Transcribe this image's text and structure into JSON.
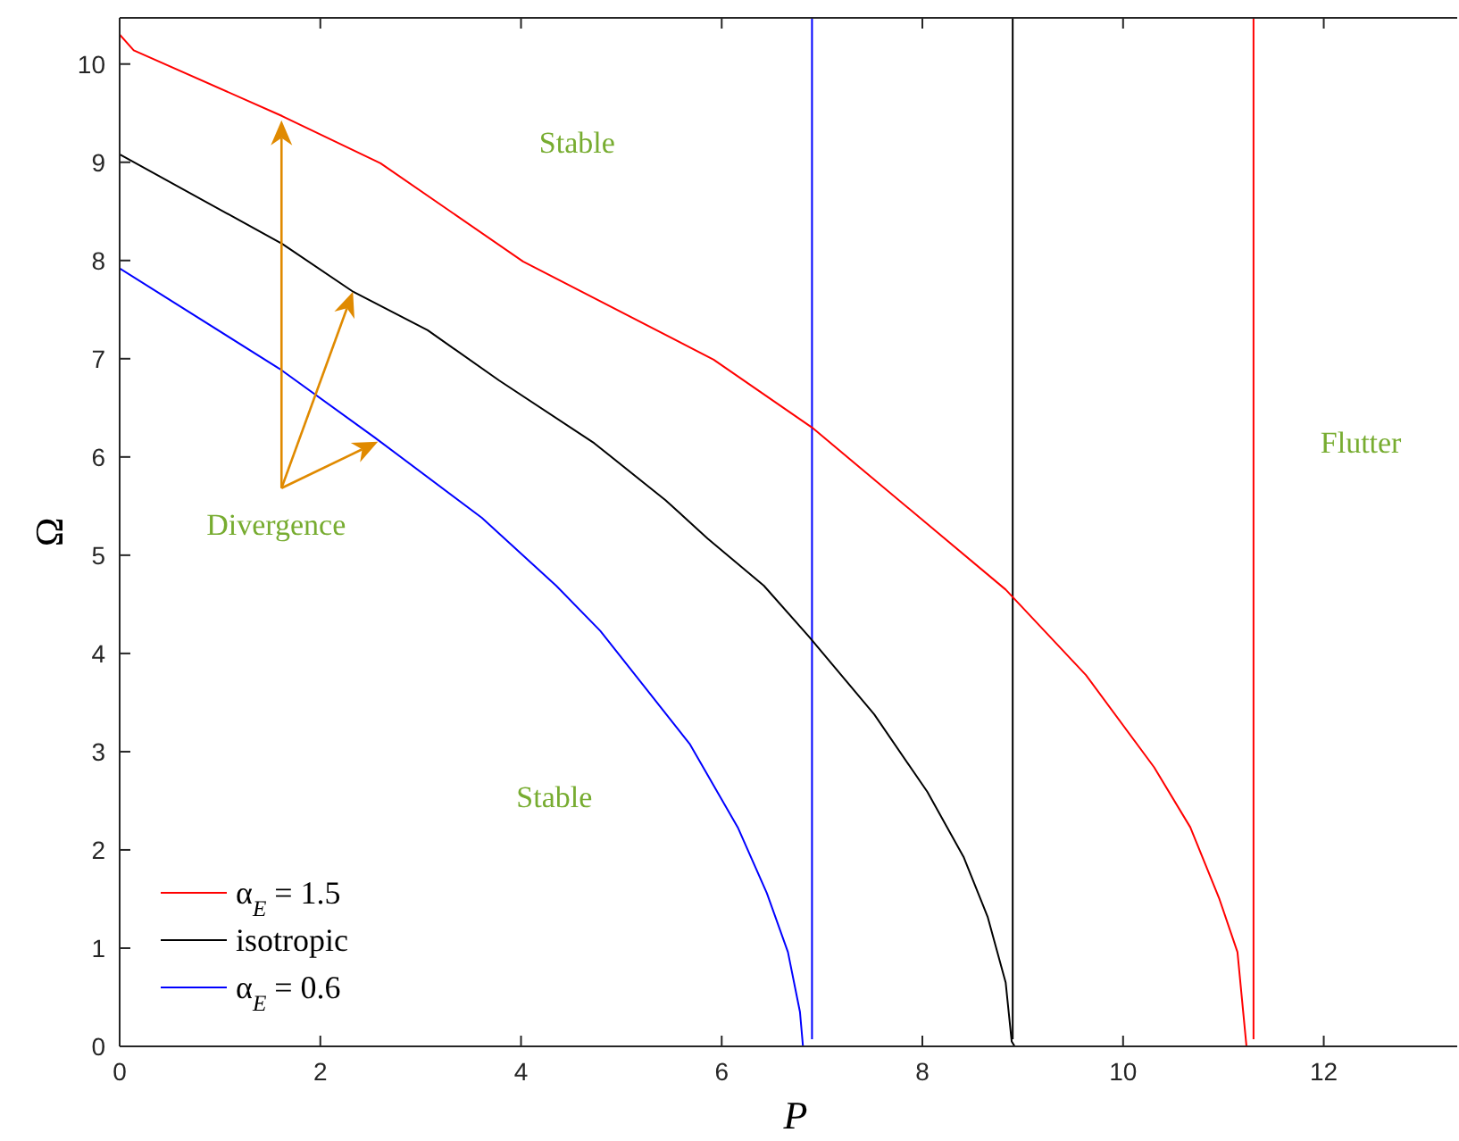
{
  "chart_data": {
    "type": "line",
    "xlabel": "P",
    "ylabel": "Ω",
    "xlim": [
      0,
      13.33
    ],
    "ylim": [
      0,
      10.47
    ],
    "xticks": [
      0,
      2,
      4,
      6,
      8,
      10,
      12
    ],
    "yticks": [
      0,
      1,
      2,
      3,
      4,
      5,
      6,
      7,
      8,
      9,
      10
    ],
    "grid": false,
    "legend": "bottom left",
    "marker": "none",
    "line_style": "solid",
    "series": [
      {
        "name": "α$_{E}$ = 1.5",
        "color": "#ff0000",
        "x": [
          0,
          0.14,
          1.62,
          2.6,
          4.02,
          5.92,
          6.9,
          8.83,
          9.63,
          10.31,
          10.67,
          10.96,
          11.14,
          11.23
        ],
        "values": [
          10.3,
          10.14,
          9.47,
          8.99,
          7.99,
          6.99,
          6.3,
          4.65,
          3.78,
          2.84,
          2.23,
          1.5,
          0.96,
          0
        ]
      },
      {
        "name": "isotropic",
        "color": "#000000",
        "x": [
          0,
          1.62,
          2.33,
          3.07,
          3.78,
          4.73,
          5.44,
          5.86,
          6.42,
          6.87,
          7.52,
          8.05,
          8.41,
          8.65,
          8.83,
          8.89,
          8.92
        ],
        "values": [
          9.08,
          8.17,
          7.68,
          7.29,
          6.78,
          6.14,
          5.56,
          5.17,
          4.69,
          4.17,
          3.38,
          2.59,
          1.93,
          1.32,
          0.65,
          0.05,
          0
        ]
      },
      {
        "name": "α$_{E}$ = 0.6",
        "color": "#0000ff",
        "x": [
          0,
          1.59,
          2.54,
          3.61,
          4.35,
          4.79,
          5.68,
          6.16,
          6.45,
          6.66,
          6.78,
          6.81
        ],
        "values": [
          7.92,
          6.9,
          6.2,
          5.38,
          4.69,
          4.23,
          3.08,
          2.23,
          1.56,
          0.96,
          0.35,
          0
        ]
      }
    ],
    "ref_lines": [
      {
        "axis": "x",
        "value": 6.9,
        "color": "#0000ff"
      },
      {
        "axis": "x",
        "value": 8.9,
        "color": "#000000"
      },
      {
        "axis": "x",
        "value": 11.3,
        "color": "#ff0000"
      }
    ],
    "annotations": [
      "Stable",
      "Stable",
      "Flutter",
      "Divergence"
    ]
  }
}
